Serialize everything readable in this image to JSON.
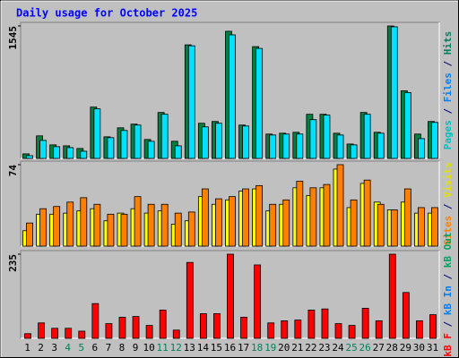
{
  "title": "Daily usage for October 2025",
  "categories": [
    "1",
    "2",
    "3",
    "4",
    "5",
    "6",
    "7",
    "8",
    "9",
    "10",
    "11",
    "12",
    "13",
    "14",
    "15",
    "16",
    "17",
    "18",
    "19",
    "20",
    "21",
    "22",
    "23",
    "24",
    "25",
    "26",
    "27",
    "28",
    "29",
    "30",
    "31"
  ],
  "category_colors": [
    "#000000",
    "#000000",
    "#000000",
    "#00805c",
    "#00805c",
    "#000000",
    "#000000",
    "#000000",
    "#000000",
    "#000000",
    "#00805c",
    "#00805c",
    "#000000",
    "#000000",
    "#000000",
    "#000000",
    "#000000",
    "#00805c",
    "#00805c",
    "#000000",
    "#000000",
    "#000000",
    "#000000",
    "#000000",
    "#00805c",
    "#00805c",
    "#000000",
    "#000000",
    "#000000",
    "#000000",
    "#000000"
  ],
  "chart_data": [
    {
      "type": "bar",
      "ylim": [
        0,
        1545
      ],
      "yticks": [
        1545
      ],
      "legend": [
        {
          "text": "Pages",
          "color": "#00c0c0"
        },
        {
          "text": " / ",
          "color": "#000080"
        },
        {
          "text": "Files",
          "color": "#0080ff"
        },
        {
          "text": " / ",
          "color": "#000080"
        },
        {
          "text": "Hits",
          "color": "#008060"
        }
      ],
      "series": [
        {
          "color": "#008040",
          "values": [
            53,
            263,
            158,
            147,
            116,
            599,
            252,
            357,
            400,
            221,
            536,
            200,
            1325,
            410,
            431,
            1483,
            389,
            1304,
            284,
            294,
            305,
            515,
            515,
            294,
            168,
            536,
            305,
            1545,
            789,
            284,
            431
          ]
        },
        {
          "color": "#00e0ff",
          "values": [
            32,
            210,
            137,
            126,
            84,
            578,
            242,
            326,
            389,
            200,
            515,
            147,
            1314,
            368,
            410,
            1441,
            378,
            1283,
            273,
            284,
            284,
            452,
            505,
            273,
            158,
            515,
            294,
            1535,
            768,
            231,
            420
          ]
        }
      ]
    },
    {
      "type": "bar",
      "ylim": [
        0,
        74
      ],
      "yticks": [
        74
      ],
      "legend": [
        {
          "text": "Sites",
          "color": "#ff8000"
        },
        {
          "text": " / ",
          "color": "#000080"
        },
        {
          "text": "Visits",
          "color": "#e0e000"
        }
      ],
      "series": [
        {
          "color": "#ffff00",
          "values": [
            14,
            29,
            29,
            30,
            32,
            34,
            23,
            30,
            34,
            30,
            32,
            20,
            23,
            45,
            38,
            42,
            50,
            52,
            32,
            38,
            53,
            46,
            53,
            70,
            35,
            57,
            40,
            33,
            40,
            30,
            30
          ]
        },
        {
          "color": "#ff8000",
          "values": [
            21,
            34,
            36,
            40,
            44,
            38,
            29,
            29,
            45,
            38,
            38,
            30,
            31,
            52,
            43,
            45,
            52,
            55,
            38,
            42,
            59,
            53,
            56,
            74,
            42,
            60,
            38,
            33,
            52,
            35,
            35
          ]
        }
      ]
    },
    {
      "type": "bar",
      "ylim": [
        0,
        235
      ],
      "yticks": [
        235
      ],
      "legend": [
        {
          "text": "kB F",
          "color": "#ff0000"
        },
        {
          "text": " / ",
          "color": "#000080"
        },
        {
          "text": "kB In",
          "color": "#0080ff"
        },
        {
          "text": " / ",
          "color": "#000080"
        },
        {
          "text": "kB Out",
          "color": "#00a060"
        }
      ],
      "series": [
        {
          "color": "#ff0000",
          "values": [
            13,
            43,
            28,
            28,
            20,
            97,
            41,
            59,
            61,
            36,
            79,
            23,
            212,
            69,
            69,
            235,
            59,
            205,
            43,
            49,
            51,
            79,
            82,
            41,
            36,
            84,
            49,
            235,
            128,
            49,
            66
          ]
        }
      ]
    }
  ]
}
